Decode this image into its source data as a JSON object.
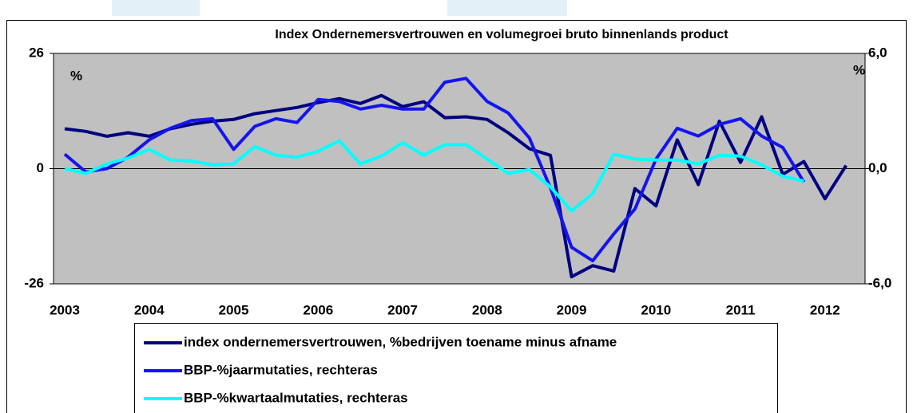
{
  "chart_data": {
    "type": "line",
    "title": "Index Ondernemersvertrouwen en volumegroei bruto binnenlands product",
    "y_unit_label": "%",
    "y2_unit_label": "%",
    "categories": [
      "2003",
      null,
      null,
      null,
      "2004",
      null,
      null,
      null,
      "2005",
      null,
      null,
      null,
      "2006",
      null,
      null,
      null,
      "2007",
      null,
      null,
      null,
      "2008",
      null,
      null,
      null,
      "2009",
      null,
      null,
      null,
      "2010",
      null,
      null,
      null,
      "2011",
      null,
      null,
      null,
      "2012",
      null
    ],
    "ylim": [
      -26,
      26
    ],
    "yticks": [
      -26,
      0,
      26
    ],
    "y2lim": [
      -6,
      6
    ],
    "y2ticks": [
      {
        "value": -6,
        "label": "-6,0"
      },
      {
        "value": 0,
        "label": "0,0"
      },
      {
        "value": 6,
        "label": "6,0"
      }
    ],
    "grid": false,
    "legend": "bottom",
    "background": "#c0c0c0",
    "series": [
      {
        "name": "index ondernemersvertrouwen, %bedrijven toename minus afname",
        "color": "#000080",
        "values": [
          9.0,
          8.4,
          7.3,
          8.1,
          7.3,
          9.0,
          10.0,
          10.7,
          11.1,
          12.4,
          13.1,
          13.8,
          14.9,
          15.8,
          14.7,
          16.5,
          14.0,
          15.1,
          11.5,
          11.7,
          11.1,
          8.1,
          4.5,
          3.0,
          -24.4,
          -21.9,
          -23.1,
          -4.5,
          -8.4,
          6.5,
          -3.6,
          10.7,
          1.4,
          11.7,
          -1.3,
          1.6,
          -6.8,
          0.7
        ]
      },
      {
        "name": "BBP-%jaarmutaties, rechteras",
        "color": "#1414f0",
        "axis": "y2",
        "values": [
          0.75,
          -0.17,
          0.0,
          0.6,
          1.5,
          2.1,
          2.5,
          2.6,
          1.0,
          2.2,
          2.6,
          2.4,
          3.6,
          3.5,
          3.1,
          3.3,
          3.1,
          3.1,
          4.5,
          4.7,
          3.5,
          2.9,
          1.6,
          -1.0,
          -4.1,
          -4.8,
          -3.4,
          -2.1,
          0.5,
          2.1,
          1.7,
          2.3,
          2.6,
          1.7,
          1.1,
          -0.7,
          null,
          null
        ]
      },
      {
        "name": "BBP-%kwartaalmutaties, rechteras",
        "color": "#00ffff",
        "axis": "y2",
        "values": [
          0.0,
          -0.25,
          0.25,
          0.55,
          1.0,
          0.45,
          0.4,
          0.2,
          0.25,
          1.15,
          0.7,
          0.6,
          0.9,
          1.45,
          0.25,
          0.65,
          1.35,
          0.7,
          1.25,
          1.25,
          0.5,
          -0.25,
          -0.05,
          -0.95,
          -2.2,
          -1.3,
          0.75,
          0.5,
          0.45,
          0.45,
          0.25,
          0.7,
          0.65,
          0.2,
          -0.4,
          -0.65,
          null,
          null
        ]
      }
    ]
  }
}
